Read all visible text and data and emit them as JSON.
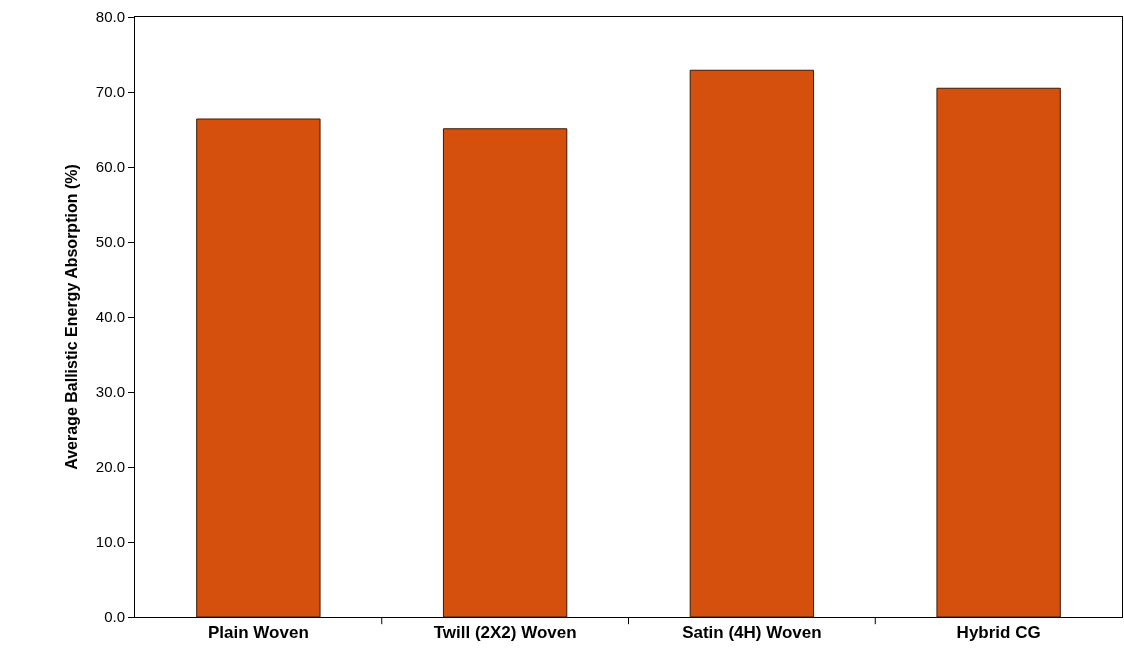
{
  "chart_data": {
    "type": "bar",
    "ylabel": "Average Ballistic Energy Absorption (%)",
    "categories": [
      "Plain Woven",
      "Twill (2X2) Woven",
      "Satin (4H) Woven",
      "Hybrid CG"
    ],
    "values": [
      66.4,
      65.1,
      72.9,
      70.5
    ],
    "color": "#d4500c",
    "ylim": [
      0,
      80
    ],
    "yticks": [
      {
        "value": 0,
        "label": "0.0"
      },
      {
        "value": 10,
        "label": "10.0"
      },
      {
        "value": 20,
        "label": "20.0"
      },
      {
        "value": 30,
        "label": "30.0"
      },
      {
        "value": 40,
        "label": "40.0"
      },
      {
        "value": 50,
        "label": "50.0"
      },
      {
        "value": 60,
        "label": "60.0"
      },
      {
        "value": 70,
        "label": "70.0"
      },
      {
        "value": 80,
        "label": "80.0"
      }
    ],
    "grid": false,
    "legend": false
  }
}
